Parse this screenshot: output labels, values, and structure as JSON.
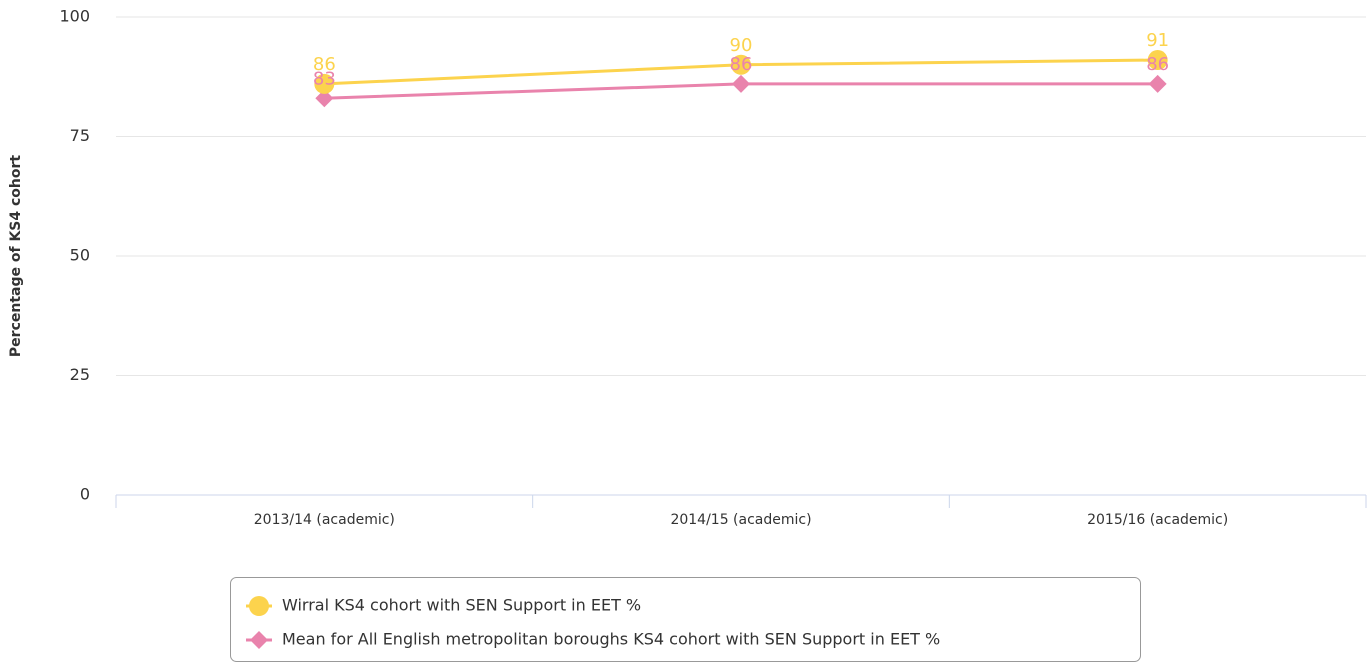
{
  "chart_data": {
    "type": "line",
    "y_axis_label": "Percentage of KS4 cohort",
    "categories": [
      "2013/14 (academic)",
      "2014/15 (academic)",
      "2015/16 (academic)"
    ],
    "series": [
      {
        "name": "Wirral KS4 cohort with SEN Support in EET %",
        "color": "#fcd34d",
        "marker": "circle",
        "values": [
          86,
          90,
          91
        ]
      },
      {
        "name": "Mean for All English metropolitan boroughs KS4 cohort with SEN Support in EET %",
        "color": "#e983ac",
        "marker": "diamond",
        "values": [
          83,
          86,
          86
        ]
      }
    ],
    "ylim": [
      0,
      100
    ],
    "yticks": [
      0,
      25,
      50,
      75,
      100
    ],
    "grid": true,
    "data_labels": true,
    "legend": "bottom"
  }
}
